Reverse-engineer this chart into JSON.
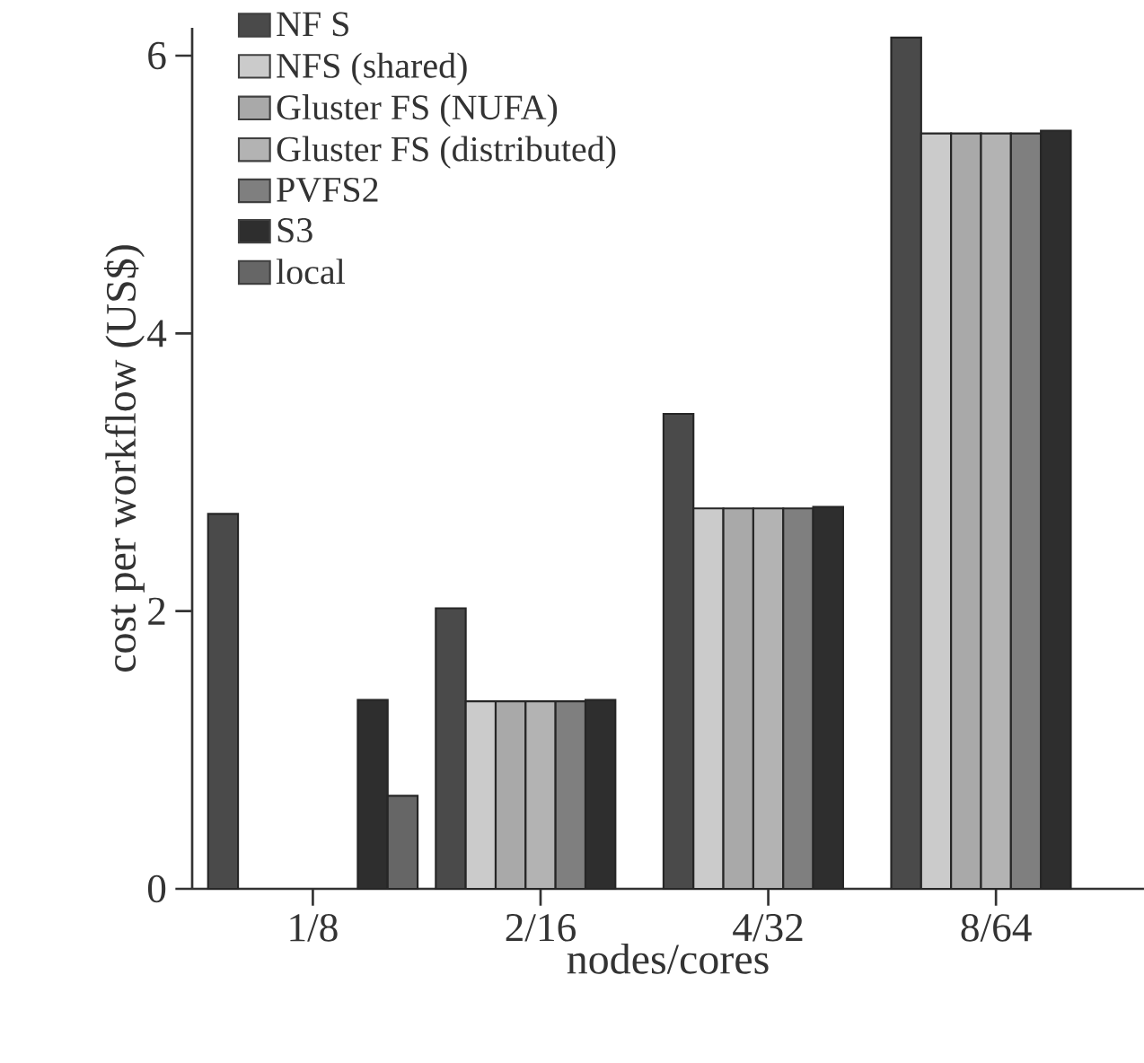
{
  "chart_data": {
    "type": "bar",
    "xlabel": "nodes/cores",
    "ylabel": "cost per workflow (US$)",
    "categories": [
      "1/8",
      "2/16",
      "4/32",
      "8/64"
    ],
    "series": [
      {
        "name": "NF S",
        "color": "#4a4a4a",
        "values": [
          2.7,
          2.02,
          3.42,
          6.13
        ]
      },
      {
        "name": "NFS (shared)",
        "color": "#cbcbcb",
        "values": [
          null,
          1.35,
          2.74,
          5.44
        ]
      },
      {
        "name": "Gluster FS (NUFA)",
        "color": "#a9a9a9",
        "values": [
          null,
          1.35,
          2.74,
          5.44
        ]
      },
      {
        "name": "Gluster FS (distributed)",
        "color": "#b3b3b3",
        "values": [
          null,
          1.35,
          2.74,
          5.44
        ]
      },
      {
        "name": "PVFS2",
        "color": "#7f7f7f",
        "values": [
          null,
          1.35,
          2.74,
          5.44
        ]
      },
      {
        "name": "S3",
        "color": "#2e2e2e",
        "values": [
          1.36,
          1.36,
          2.75,
          5.46
        ]
      },
      {
        "name": "local",
        "color": "#666666",
        "values": [
          0.67,
          null,
          null,
          null
        ]
      }
    ],
    "ylim": [
      0,
      6.2
    ],
    "yticks": [
      0,
      2,
      4,
      6
    ],
    "grid": false,
    "legend": "top left"
  }
}
